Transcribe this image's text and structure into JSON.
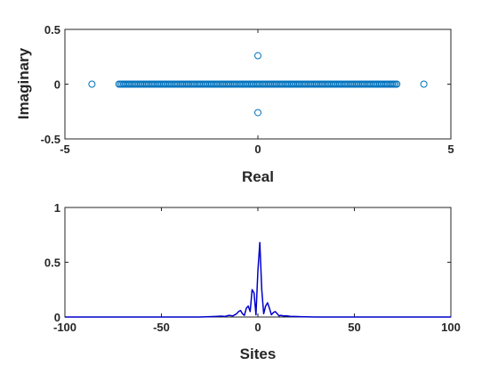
{
  "chart_data": [
    {
      "type": "scatter",
      "title": "",
      "xlabel": "Real",
      "ylabel": "Imaginary",
      "xlim": [
        -5,
        5
      ],
      "ylim": [
        -0.5,
        0.5
      ],
      "xticks": [
        "-5",
        "0",
        "5"
      ],
      "yticks": [
        "-0.5",
        "0",
        "0.5"
      ],
      "marker": "open-circle",
      "color": "#0072BD",
      "grid": false,
      "legend": "none",
      "real_axis_band": {
        "x_from": -3.6,
        "x_to": 3.6,
        "y": 0
      },
      "points": [
        {
          "x": -4.3,
          "y": 0
        },
        {
          "x": 4.3,
          "y": 0
        },
        {
          "x": 0,
          "y": 0.26
        },
        {
          "x": 0,
          "y": -0.26
        }
      ]
    },
    {
      "type": "line",
      "title": "",
      "xlabel": "Sites",
      "ylabel": "",
      "xlim": [
        -100,
        100
      ],
      "ylim": [
        0,
        1
      ],
      "xticks": [
        "-100",
        "-50",
        "0",
        "50",
        "100"
      ],
      "yticks": [
        "0",
        "0.5",
        "1"
      ],
      "color": "#0000CC",
      "grid": false,
      "legend": "none",
      "x": [
        -100,
        -30,
        -22,
        -19,
        -17,
        -15,
        -13,
        -12,
        -11,
        -10,
        -9,
        -8,
        -7,
        -6,
        -5,
        -4,
        -3,
        -2,
        -1,
        0,
        1,
        2,
        3,
        4,
        5,
        6,
        7,
        8,
        9,
        10,
        11,
        12,
        13,
        15,
        17,
        19,
        22,
        30,
        100
      ],
      "y": [
        0,
        0,
        0.005,
        0.008,
        0.005,
        0.015,
        0.01,
        0.02,
        0.03,
        0.05,
        0.06,
        0.03,
        0.015,
        0.08,
        0.1,
        0.05,
        0.25,
        0.22,
        0.02,
        0.42,
        0.68,
        0.25,
        0.03,
        0.1,
        0.13,
        0.08,
        0.02,
        0.04,
        0.05,
        0.03,
        0.01,
        0.015,
        0.01,
        0.01,
        0.005,
        0.005,
        0.003,
        0,
        0
      ]
    }
  ]
}
